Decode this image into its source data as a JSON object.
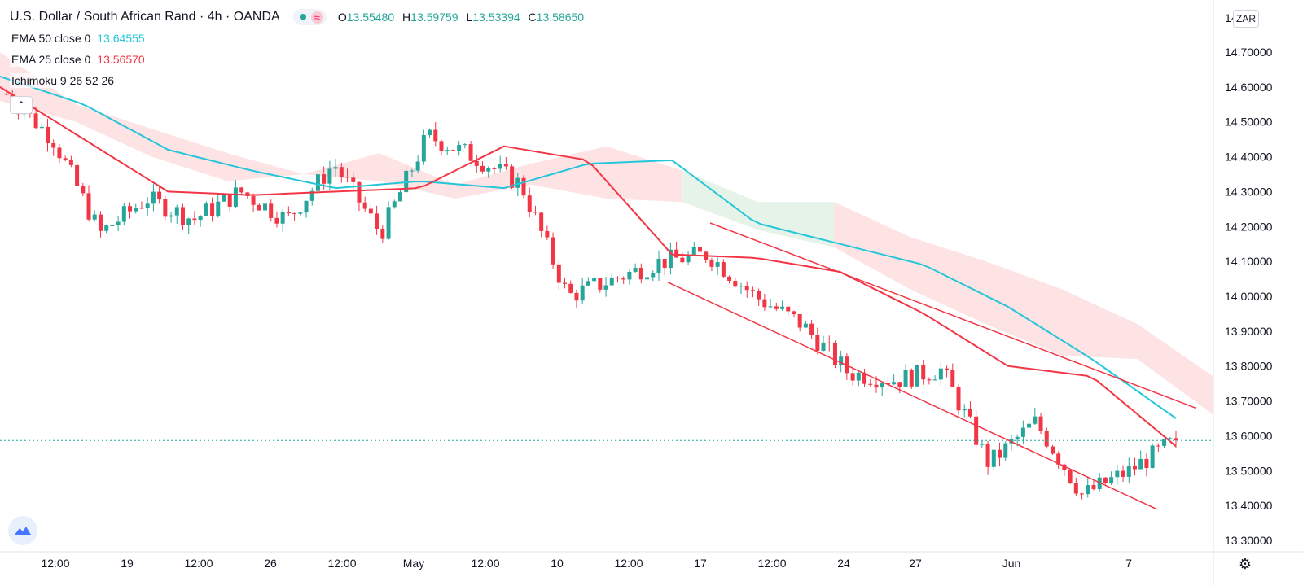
{
  "header": {
    "symbol": "U.S. Dollar / South African Rand",
    "interval": "4h",
    "source": "OANDA",
    "sep1": "/",
    "ohlc": {
      "o_label": "O",
      "o": "13.55480",
      "h_label": "H",
      "h": "13.59759",
      "l_label": "L",
      "l": "13.53394",
      "c_label": "C",
      "c": "13.58650"
    },
    "approx_icon": "≈"
  },
  "indicators": [
    {
      "label": "EMA 50 close 0",
      "value": "13.64555",
      "color": "#26c6da"
    },
    {
      "label": "EMA 25 close 0",
      "value": "13.56570",
      "color": "#f23645"
    },
    {
      "label": "Ichimoku 9 26 52 26",
      "value": "",
      "color": "#131722"
    }
  ],
  "currency_button": "ZAR",
  "collapse_icon": "chevron-up-icon",
  "settings_icon": "gear-icon",
  "colors": {
    "up": "#26a69a",
    "down": "#f23645",
    "ema50": "#26c6da",
    "ema25": "#f23645",
    "cloud_bear": "#fde0e0",
    "cloud_bull": "#e3f2e6",
    "channel": "#f23645"
  },
  "chart_data": {
    "type": "candlestick",
    "title": "U.S. Dollar / South African Rand · 4h · OANDA",
    "ylim": [
      13.27,
      14.82
    ],
    "y_ticks": [
      "14.70000",
      "14.60000",
      "14.50000",
      "14.40000",
      "14.30000",
      "14.20000",
      "14.10000",
      "14.00000",
      "13.90000",
      "13.80000",
      "13.70000",
      "13.60000",
      "13.50000",
      "13.40000",
      "13.30000"
    ],
    "y_tick_values": [
      14.7,
      14.6,
      14.5,
      14.4,
      14.3,
      14.2,
      14.1,
      14.0,
      13.9,
      13.8,
      13.7,
      13.6,
      13.5,
      13.4,
      13.3
    ],
    "top_clipped_tick": "14",
    "x_ticks": [
      "12:00",
      "19",
      "12:00",
      "26",
      "12:00",
      "May",
      "12:00",
      "10",
      "12:00",
      "17",
      "12:00",
      "24",
      "27",
      "Jun",
      "7"
    ],
    "last_price": 13.5865,
    "ema50_anchors": [
      14.63,
      14.55,
      14.42,
      14.36,
      14.31,
      14.33,
      14.31,
      14.38,
      14.39,
      14.21,
      14.15,
      14.09,
      13.97,
      13.82,
      13.65
    ],
    "ema25_anchors": [
      14.6,
      14.45,
      14.3,
      14.29,
      14.3,
      14.31,
      14.43,
      14.39,
      14.12,
      14.11,
      14.07,
      13.95,
      13.8,
      13.77,
      13.57
    ],
    "cloud_top": [
      14.7,
      14.55,
      14.48,
      14.41,
      14.35,
      14.41,
      14.32,
      14.38,
      14.43,
      14.36,
      14.27,
      14.27,
      14.17,
      14.1,
      14.02,
      13.92,
      13.77
    ],
    "cloud_bottom": [
      14.56,
      14.5,
      14.4,
      14.33,
      14.35,
      14.33,
      14.28,
      14.32,
      14.28,
      14.27,
      14.19,
      14.14,
      14.02,
      13.92,
      13.83,
      13.82,
      13.66
    ],
    "channel": {
      "upper": {
        "from": [
          0.0,
          14.21
        ],
        "to": [
          1.0,
          13.68
        ]
      },
      "lower": {
        "from": [
          0.0,
          14.04
        ],
        "to": [
          1.0,
          13.39
        ]
      }
    }
  }
}
